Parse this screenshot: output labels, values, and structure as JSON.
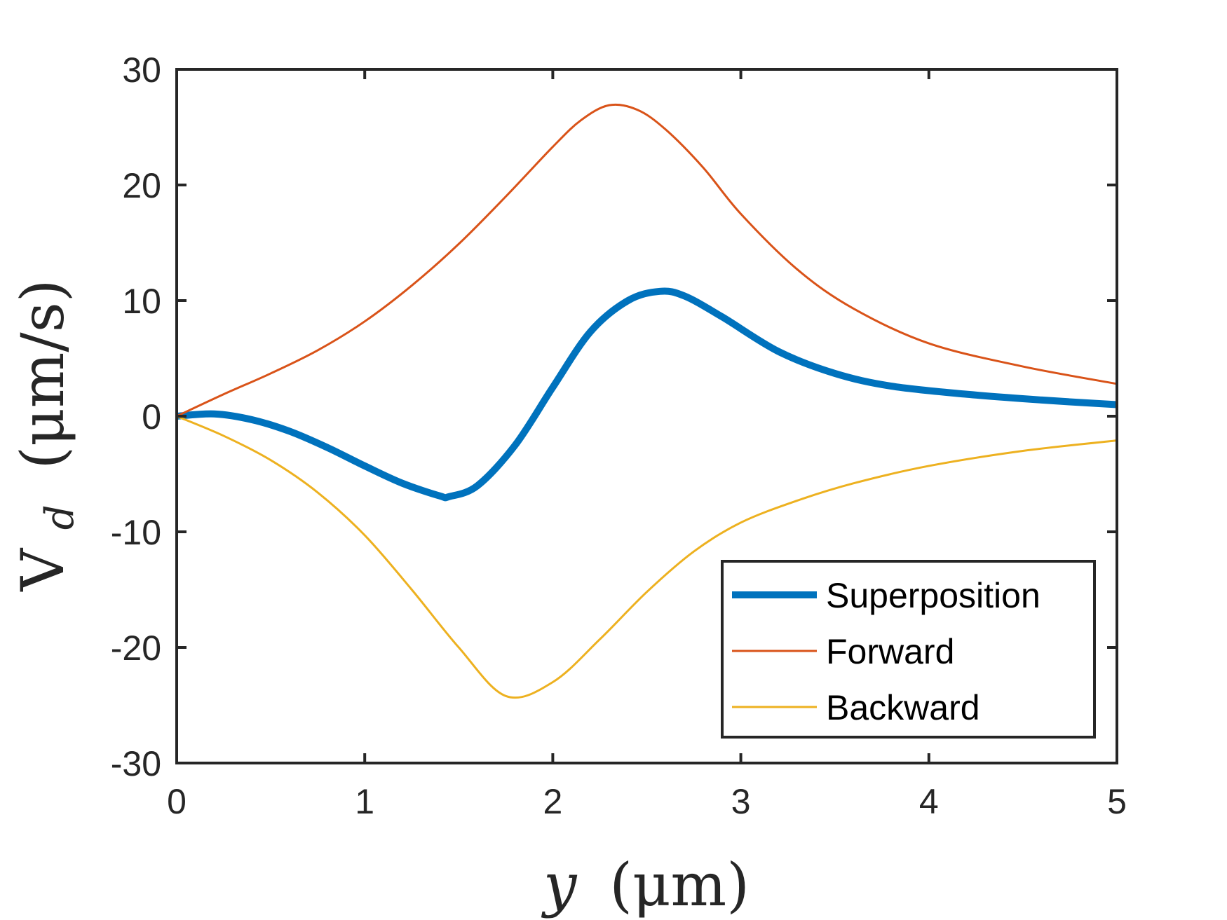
{
  "chart_data": {
    "type": "line",
    "xlabel": "y (μm)",
    "ylabel": "V_d (μm/s)",
    "ylabel_main": "V",
    "ylabel_sub": "d",
    "ylabel_rest": "(μm/s)",
    "xlabel_var": "y",
    "xlabel_rest": "(μm)",
    "xlim": [
      0,
      5
    ],
    "ylim": [
      -30,
      30
    ],
    "xticks": [
      0,
      1,
      2,
      3,
      4,
      5
    ],
    "yticks": [
      30,
      20,
      10,
      0,
      -10,
      -20,
      -30
    ],
    "xtick_labels": [
      "0",
      "1",
      "2",
      "3",
      "4",
      "5"
    ],
    "ytick_labels": [
      "30",
      "20",
      "10",
      "0",
      "-10",
      "-20",
      "-30"
    ],
    "grid": false,
    "legend_position": "bottom-right",
    "series": [
      {
        "name": "Superposition",
        "color": "#0072BD",
        "width": "thick",
        "x": [
          0,
          0.2,
          0.4,
          0.6,
          0.8,
          1.0,
          1.2,
          1.4,
          1.45,
          1.6,
          1.8,
          2.0,
          2.2,
          2.4,
          2.57,
          2.7,
          2.9,
          3.2,
          3.5,
          3.8,
          4.2,
          4.6,
          5.0
        ],
        "y": [
          0,
          0.2,
          -0.3,
          -1.3,
          -2.7,
          -4.3,
          -5.8,
          -6.9,
          -6.95,
          -6.0,
          -2.5,
          2.5,
          7.3,
          10.0,
          10.8,
          10.4,
          8.6,
          5.6,
          3.7,
          2.6,
          1.9,
          1.4,
          1.0
        ]
      },
      {
        "name": "Forward",
        "color": "#D95319",
        "width": "thin",
        "x": [
          0,
          0.25,
          0.5,
          0.75,
          1.0,
          1.25,
          1.5,
          1.75,
          2.0,
          2.15,
          2.3,
          2.45,
          2.6,
          2.8,
          3.0,
          3.3,
          3.6,
          4.0,
          4.5,
          5.0
        ],
        "y": [
          0,
          1.9,
          3.7,
          5.7,
          8.2,
          11.3,
          14.9,
          19.0,
          23.3,
          25.6,
          26.9,
          26.5,
          24.8,
          21.5,
          17.5,
          12.7,
          9.3,
          6.3,
          4.3,
          2.8
        ]
      },
      {
        "name": "Backward",
        "color": "#EDB120",
        "width": "thin",
        "x": [
          0,
          0.25,
          0.5,
          0.75,
          1.0,
          1.25,
          1.5,
          1.75,
          2.0,
          2.25,
          2.5,
          2.75,
          3.0,
          3.3,
          3.6,
          4.0,
          4.5,
          5.0
        ],
        "y": [
          0,
          -1.7,
          -3.8,
          -6.6,
          -10.3,
          -15.0,
          -20.0,
          -24.2,
          -23.0,
          -19.3,
          -15.2,
          -11.7,
          -9.2,
          -7.3,
          -5.8,
          -4.3,
          -3.0,
          -2.1
        ]
      }
    ]
  }
}
